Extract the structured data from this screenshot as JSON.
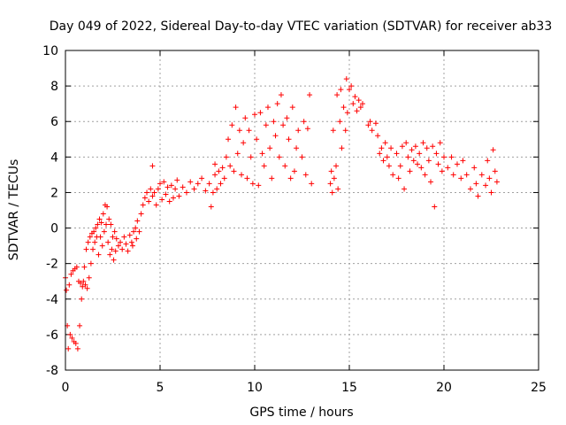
{
  "chart_data": {
    "type": "scatter",
    "title": "Day 049 of 2022, Sidereal Day-to-day VTEC variation (SDTVAR) for receiver ab33",
    "xlabel": "GPS time / hours",
    "ylabel": "SDTVAR / TECUs",
    "xlim": [
      0,
      25
    ],
    "ylim": [
      -8,
      10
    ],
    "x_ticks": [
      0,
      5,
      10,
      15,
      20,
      25
    ],
    "y_ticks": [
      -8,
      -6,
      -4,
      -2,
      0,
      2,
      4,
      6,
      8,
      10
    ],
    "grid": true,
    "marker": "plus",
    "color": "#ff0000",
    "series": [
      {
        "name": "SDTVAR",
        "points": [
          [
            0.0,
            -2.8
          ],
          [
            0.05,
            -3.5
          ],
          [
            0.1,
            -5.5
          ],
          [
            0.15,
            -6.8
          ],
          [
            0.2,
            -3.2
          ],
          [
            0.25,
            -6.0
          ],
          [
            0.3,
            -2.6
          ],
          [
            0.35,
            -6.2
          ],
          [
            0.4,
            -2.4
          ],
          [
            0.45,
            -6.4
          ],
          [
            0.5,
            -2.3
          ],
          [
            0.55,
            -6.5
          ],
          [
            0.6,
            -2.2
          ],
          [
            0.65,
            -6.8
          ],
          [
            0.7,
            -3.0
          ],
          [
            0.75,
            -5.5
          ],
          [
            0.8,
            -3.1
          ],
          [
            0.85,
            -4.0
          ],
          [
            0.9,
            -3.3
          ],
          [
            0.95,
            -3.0
          ],
          [
            1.0,
            -2.2
          ],
          [
            1.05,
            -3.2
          ],
          [
            1.1,
            -1.2
          ],
          [
            1.15,
            -3.4
          ],
          [
            1.2,
            -0.8
          ],
          [
            1.25,
            -2.8
          ],
          [
            1.3,
            -0.5
          ],
          [
            1.35,
            -2.0
          ],
          [
            1.4,
            -0.3
          ],
          [
            1.45,
            -1.2
          ],
          [
            1.5,
            -0.2
          ],
          [
            1.55,
            -0.8
          ],
          [
            1.6,
            0.0
          ],
          [
            1.65,
            -0.5
          ],
          [
            1.7,
            0.2
          ],
          [
            1.75,
            -1.5
          ],
          [
            1.8,
            0.5
          ],
          [
            1.85,
            -0.5
          ],
          [
            1.9,
            0.3
          ],
          [
            1.95,
            -1.0
          ],
          [
            2.0,
            0.8
          ],
          [
            2.05,
            -0.2
          ],
          [
            2.1,
            1.3
          ],
          [
            2.15,
            0.2
          ],
          [
            2.2,
            1.2
          ],
          [
            2.25,
            -0.8
          ],
          [
            2.3,
            0.5
          ],
          [
            2.35,
            -1.5
          ],
          [
            2.4,
            0.2
          ],
          [
            2.45,
            -1.2
          ],
          [
            2.5,
            -0.5
          ],
          [
            2.55,
            -1.8
          ],
          [
            2.6,
            -0.2
          ],
          [
            2.65,
            -1.3
          ],
          [
            2.7,
            -0.6
          ],
          [
            2.8,
            -1.0
          ],
          [
            2.9,
            -0.8
          ],
          [
            3.0,
            -1.2
          ],
          [
            3.1,
            -0.5
          ],
          [
            3.2,
            -0.9
          ],
          [
            3.3,
            -1.3
          ],
          [
            3.4,
            -0.4
          ],
          [
            3.5,
            -0.8
          ],
          [
            3.55,
            -1.0
          ],
          [
            3.6,
            -0.2
          ],
          [
            3.7,
            0.0
          ],
          [
            3.75,
            -0.6
          ],
          [
            3.8,
            0.4
          ],
          [
            3.9,
            -0.2
          ],
          [
            4.0,
            0.8
          ],
          [
            4.1,
            1.3
          ],
          [
            4.2,
            1.7
          ],
          [
            4.3,
            2.0
          ],
          [
            4.4,
            1.5
          ],
          [
            4.5,
            2.2
          ],
          [
            4.6,
            1.8
          ],
          [
            4.6,
            3.5
          ],
          [
            4.7,
            2.0
          ],
          [
            4.8,
            1.3
          ],
          [
            4.9,
            2.2
          ],
          [
            5.0,
            2.5
          ],
          [
            5.1,
            1.6
          ],
          [
            5.2,
            2.6
          ],
          [
            5.3,
            1.9
          ],
          [
            5.4,
            2.3
          ],
          [
            5.5,
            1.5
          ],
          [
            5.6,
            2.4
          ],
          [
            5.7,
            1.7
          ],
          [
            5.8,
            2.2
          ],
          [
            5.9,
            2.7
          ],
          [
            6.0,
            1.8
          ],
          [
            6.2,
            2.3
          ],
          [
            6.4,
            2.0
          ],
          [
            6.6,
            2.6
          ],
          [
            6.8,
            2.2
          ],
          [
            7.0,
            2.5
          ],
          [
            7.2,
            2.8
          ],
          [
            7.4,
            2.1
          ],
          [
            7.6,
            2.5
          ],
          [
            7.7,
            1.2
          ],
          [
            7.8,
            2.0
          ],
          [
            7.9,
            3.0
          ],
          [
            7.9,
            3.6
          ],
          [
            8.0,
            2.2
          ],
          [
            8.1,
            3.2
          ],
          [
            8.2,
            2.5
          ],
          [
            8.3,
            3.4
          ],
          [
            8.4,
            2.8
          ],
          [
            8.5,
            4.0
          ],
          [
            8.6,
            5.0
          ],
          [
            8.7,
            3.5
          ],
          [
            8.8,
            5.8
          ],
          [
            8.9,
            3.2
          ],
          [
            9.0,
            6.8
          ],
          [
            9.1,
            4.2
          ],
          [
            9.2,
            5.5
          ],
          [
            9.3,
            3.0
          ],
          [
            9.4,
            4.8
          ],
          [
            9.5,
            6.2
          ],
          [
            9.6,
            2.8
          ],
          [
            9.7,
            5.5
          ],
          [
            9.8,
            4.0
          ],
          [
            9.9,
            2.5
          ],
          [
            10.0,
            6.4
          ],
          [
            10.1,
            5.0
          ],
          [
            10.2,
            2.4
          ],
          [
            10.3,
            6.5
          ],
          [
            10.4,
            4.2
          ],
          [
            10.5,
            3.5
          ],
          [
            10.6,
            5.8
          ],
          [
            10.7,
            6.8
          ],
          [
            10.8,
            4.5
          ],
          [
            10.9,
            2.8
          ],
          [
            11.0,
            6.0
          ],
          [
            11.1,
            5.2
          ],
          [
            11.2,
            7.0
          ],
          [
            11.3,
            4.0
          ],
          [
            11.4,
            7.5
          ],
          [
            11.5,
            5.8
          ],
          [
            11.6,
            3.5
          ],
          [
            11.7,
            6.2
          ],
          [
            11.8,
            5.0
          ],
          [
            11.9,
            2.8
          ],
          [
            12.0,
            6.8
          ],
          [
            12.1,
            3.2
          ],
          [
            12.2,
            4.5
          ],
          [
            12.3,
            5.5
          ],
          [
            12.5,
            4.0
          ],
          [
            12.6,
            6.0
          ],
          [
            12.7,
            3.0
          ],
          [
            12.8,
            5.6
          ],
          [
            12.9,
            7.5
          ],
          [
            13.0,
            2.5
          ],
          [
            14.0,
            2.5
          ],
          [
            14.05,
            3.2
          ],
          [
            14.1,
            2.0
          ],
          [
            14.15,
            5.5
          ],
          [
            14.2,
            2.8
          ],
          [
            14.3,
            3.5
          ],
          [
            14.35,
            7.5
          ],
          [
            14.4,
            2.2
          ],
          [
            14.5,
            6.0
          ],
          [
            14.55,
            7.8
          ],
          [
            14.6,
            4.5
          ],
          [
            14.7,
            6.8
          ],
          [
            14.8,
            5.5
          ],
          [
            14.85,
            8.4
          ],
          [
            14.9,
            6.5
          ],
          [
            15.0,
            7.8
          ],
          [
            15.1,
            8.0
          ],
          [
            15.2,
            7.0
          ],
          [
            15.3,
            7.4
          ],
          [
            15.4,
            6.6
          ],
          [
            15.5,
            7.2
          ],
          [
            15.6,
            6.8
          ],
          [
            15.7,
            7.0
          ],
          [
            16.0,
            5.8
          ],
          [
            16.1,
            6.0
          ],
          [
            16.2,
            5.5
          ],
          [
            16.4,
            5.9
          ],
          [
            16.5,
            5.2
          ],
          [
            16.6,
            4.2
          ],
          [
            16.7,
            4.5
          ],
          [
            16.8,
            3.8
          ],
          [
            16.9,
            4.8
          ],
          [
            17.0,
            4.0
          ],
          [
            17.1,
            3.5
          ],
          [
            17.2,
            4.5
          ],
          [
            17.3,
            3.0
          ],
          [
            17.5,
            4.2
          ],
          [
            17.6,
            2.8
          ],
          [
            17.7,
            3.5
          ],
          [
            17.8,
            4.6
          ],
          [
            17.9,
            2.2
          ],
          [
            18.0,
            4.8
          ],
          [
            18.1,
            4.0
          ],
          [
            18.2,
            3.2
          ],
          [
            18.3,
            4.4
          ],
          [
            18.4,
            3.8
          ],
          [
            18.5,
            4.6
          ],
          [
            18.6,
            3.6
          ],
          [
            18.7,
            4.2
          ],
          [
            18.8,
            3.4
          ],
          [
            18.9,
            4.8
          ],
          [
            19.0,
            3.0
          ],
          [
            19.1,
            4.5
          ],
          [
            19.2,
            3.8
          ],
          [
            19.3,
            2.6
          ],
          [
            19.4,
            4.6
          ],
          [
            19.5,
            1.2
          ],
          [
            19.6,
            4.2
          ],
          [
            19.7,
            3.6
          ],
          [
            19.8,
            4.8
          ],
          [
            19.9,
            3.2
          ],
          [
            20.0,
            4.0
          ],
          [
            20.2,
            3.4
          ],
          [
            20.4,
            4.0
          ],
          [
            20.5,
            3.0
          ],
          [
            20.7,
            3.6
          ],
          [
            20.9,
            2.8
          ],
          [
            21.0,
            3.8
          ],
          [
            21.2,
            3.0
          ],
          [
            21.4,
            2.2
          ],
          [
            21.6,
            3.4
          ],
          [
            21.7,
            2.5
          ],
          [
            21.8,
            1.8
          ],
          [
            22.0,
            3.0
          ],
          [
            22.2,
            2.4
          ],
          [
            22.3,
            3.8
          ],
          [
            22.4,
            2.8
          ],
          [
            22.5,
            2.0
          ],
          [
            22.6,
            4.4
          ],
          [
            22.7,
            3.2
          ],
          [
            22.8,
            2.6
          ]
        ]
      }
    ]
  }
}
